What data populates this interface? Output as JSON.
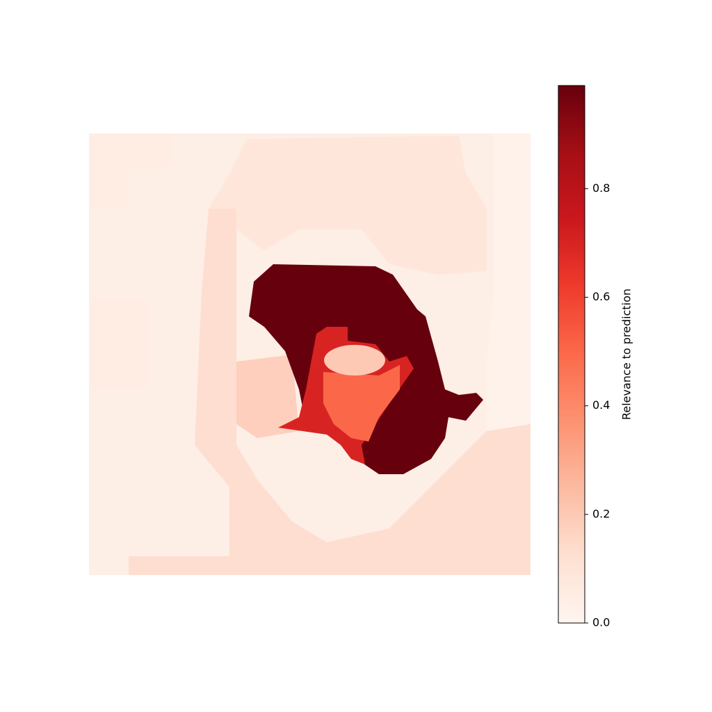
{
  "chart_data": {
    "type": "heatmap",
    "title": "",
    "xlabel": "",
    "ylabel": "",
    "axes_visible": false,
    "colormap": "Reds",
    "vmin": 0.0,
    "vmax": 0.99,
    "colorbar": {
      "label": "Relevance to prediction",
      "ticks": [
        0.0,
        0.2,
        0.4,
        0.6,
        0.8
      ],
      "tick_labels": [
        "0.0",
        "0.2",
        "0.4",
        "0.6",
        "0.8"
      ],
      "placement": "right"
    },
    "relevance_levels": [
      0.02,
      0.05,
      0.09,
      0.13,
      0.18,
      0.2,
      0.5,
      0.7,
      0.99
    ],
    "regions": [
      {
        "name": "background-left",
        "value": 0.05
      },
      {
        "name": "hair",
        "value": 0.09
      },
      {
        "name": "face",
        "value": 0.13
      },
      {
        "name": "cheek",
        "value": 0.18
      },
      {
        "name": "outer-highlight",
        "value": 0.99
      },
      {
        "name": "mid-highlight",
        "value": 0.7
      },
      {
        "name": "inner-highlight",
        "value": 0.5
      },
      {
        "name": "hole",
        "value": 0.2
      }
    ]
  }
}
